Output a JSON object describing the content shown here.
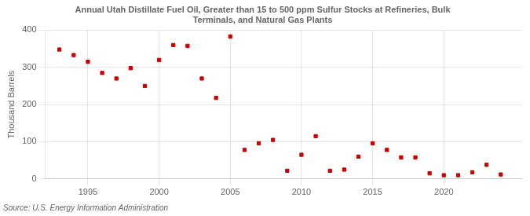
{
  "chart_data": {
    "type": "scatter",
    "title": "Annual Utah Distillate Fuel Oil, Greater than 15 to 500 ppm Sulfur Stocks at Refineries, Bulk\nTerminals, and Natural Gas Plants",
    "ylabel": "Thousand Barrels",
    "source": "Source: U.S. Energy Information Administration",
    "x": [
      1993,
      1994,
      1995,
      1996,
      1997,
      1998,
      1999,
      2000,
      2001,
      2002,
      2003,
      2004,
      2005,
      2006,
      2007,
      2008,
      2009,
      2010,
      2011,
      2012,
      2013,
      2014,
      2015,
      2016,
      2017,
      2018,
      2019,
      2020,
      2021,
      2022,
      2023,
      2024
    ],
    "values": [
      348,
      333,
      315,
      285,
      270,
      298,
      250,
      320,
      360,
      358,
      270,
      218,
      383,
      78,
      96,
      105,
      22,
      65,
      115,
      22,
      25,
      60,
      96,
      78,
      58,
      58,
      15,
      10,
      10,
      18,
      38,
      12
    ],
    "color": "#cc0000",
    "marker": "square",
    "xlim": [
      1992.0,
      2025.5
    ],
    "xticks": [
      1995,
      2000,
      2005,
      2010,
      2015,
      2020
    ],
    "ylim": [
      0,
      400
    ],
    "yticks": [
      0,
      100,
      200,
      300,
      400
    ],
    "grid": true
  }
}
